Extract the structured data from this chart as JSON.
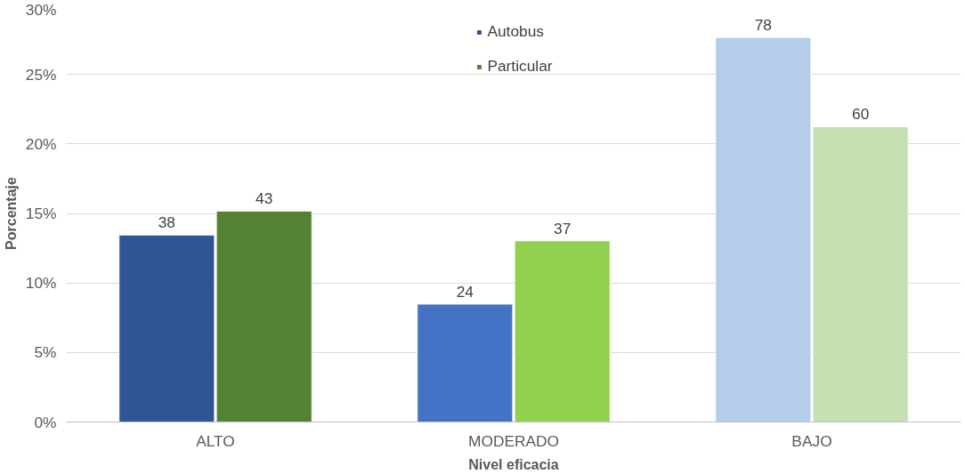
{
  "chart_data": {
    "type": "bar",
    "xlabel": "Nivel eficacia",
    "ylabel": "Porcentaje",
    "categories": [
      "ALTO",
      "MODERADO",
      "BAJO"
    ],
    "series": [
      {
        "name": "Autobus",
        "colors": [
          "#2f5597",
          "#4472c4",
          "#b4cde8"
        ],
        "values": [
          13.45,
          8.48,
          27.66
        ]
      },
      {
        "name": "Particular",
        "colors": [
          "#548235",
          "#92d050",
          "#c5e0b3"
        ],
        "values": [
          15.17,
          13.03,
          21.24
        ]
      }
    ],
    "annotations": [
      {
        "text": "38",
        "x": "ALTO",
        "y": 13.45
      },
      {
        "text": "43",
        "x": "ALTO",
        "y": 15.17
      },
      {
        "text": "24",
        "x": "MODERADO",
        "y": 8.48
      },
      {
        "text": "37",
        "x": "MODERADO",
        "y": 13.03
      },
      {
        "text": "78",
        "x": "BAJO",
        "y": 27.66
      },
      {
        "text": "60",
        "x": "BAJO",
        "y": 21.24
      }
    ],
    "ylim": [
      0,
      30
    ],
    "yticks": [
      {
        "value": 0,
        "label": "0%"
      },
      {
        "value": 5,
        "label": "5%"
      },
      {
        "value": 10,
        "label": "10%"
      },
      {
        "value": 15,
        "label": "15%"
      },
      {
        "value": 20,
        "label": "20%"
      },
      {
        "value": 25,
        "label": "25%"
      },
      {
        "value": 30,
        "label": "30%"
      }
    ],
    "grid": "y",
    "legend": "top"
  }
}
